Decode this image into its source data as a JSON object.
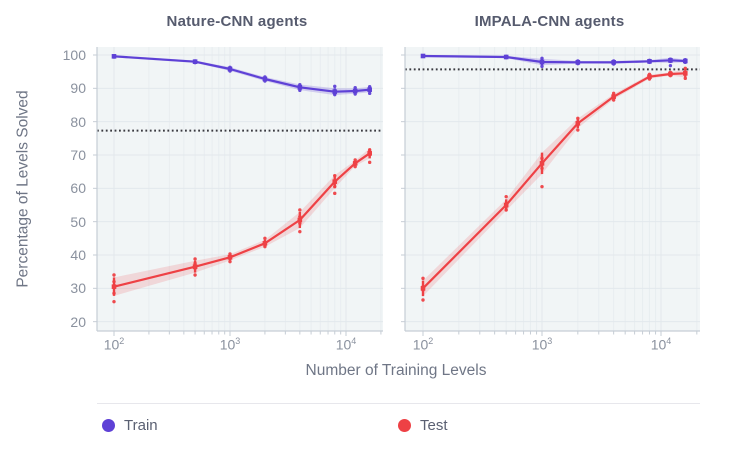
{
  "page": {
    "background": "#ffffff"
  },
  "legend": {
    "items": [
      {
        "label": "Train",
        "color": "#5E41D6"
      },
      {
        "label": "Test",
        "color": "#EE4145"
      }
    ]
  },
  "chart_data": {
    "type": "line",
    "xlabel": "Number of Training Levels",
    "ylabel": "Percentage of Levels Solved",
    "x_scale": "log",
    "grid": true,
    "legend_position": "bottom",
    "ylim": [
      20,
      100
    ],
    "y_ticks": [
      100,
      90,
      80,
      70,
      60,
      50,
      40,
      30,
      20
    ],
    "x_tick_exponents": [
      2,
      3,
      4
    ],
    "x": [
      100,
      500,
      1000,
      2000,
      4000,
      8000,
      12000,
      16000
    ],
    "style": {
      "plot_background": "#F1F5F6",
      "grid_color": "#E2E8EC",
      "minor_grid_color": "#E8EDF0",
      "spine_color": "#C6CDD5",
      "tick_label_color": "#8A919E",
      "baseline_color": "#3A3A40",
      "train_band_opacity": 0.22,
      "test_band_opacity": 0.16
    },
    "panels": [
      {
        "title": "Nature-CNN agents",
        "baseline": 77.3,
        "series": [
          {
            "name": "Train",
            "color": "#5E41D6",
            "mean": [
              99.6,
              98.0,
              95.8,
              92.8,
              90.3,
              89.0,
              89.2,
              89.6
            ],
            "seeds": [
              [
                99.4,
                99.7
              ],
              [
                97.7,
                98.2
              ],
              [
                95.2,
                96.3
              ],
              [
                92.2,
                93.4
              ],
              [
                89.4,
                91.1
              ],
              [
                88.1,
                89.2,
                90.6
              ],
              [
                88.3,
                89.3,
                90.2
              ],
              [
                88.5,
                89.7,
                90.5
              ]
            ]
          },
          {
            "name": "Test",
            "color": "#EE4145",
            "mean": [
              30.5,
              36.5,
              39.3,
              43.5,
              50.5,
              62.0,
              67.5,
              70.5
            ],
            "seeds": [
              [
                26.0,
                28.5,
                30.5,
                32.0,
                34.0
              ],
              [
                34.0,
                36.0,
                37.5,
                38.8
              ],
              [
                38.0,
                39.3,
                40.3
              ],
              [
                42.5,
                43.5,
                45.0
              ],
              [
                47.0,
                49.5,
                51.5,
                53.5
              ],
              [
                58.5,
                60.5,
                62.0,
                63.8
              ],
              [
                66.5,
                67.5,
                68.5
              ],
              [
                67.8,
                70.0,
                71.5
              ]
            ]
          }
        ]
      },
      {
        "title": "IMPALA-CNN agents",
        "baseline": 95.7,
        "series": [
          {
            "name": "Train",
            "color": "#5E41D6",
            "mean": [
              99.7,
              99.4,
              97.9,
              97.8,
              97.8,
              98.1,
              98.4,
              98.2
            ],
            "seeds": [
              [
                99.6,
                99.8
              ],
              [
                99.2,
                99.6
              ],
              [
                96.6,
                97.9,
                99.0
              ],
              [
                97.4,
                98.2
              ],
              [
                97.3,
                98.2
              ],
              [
                97.8,
                98.4
              ],
              [
                96.8,
                98.3,
                98.7
              ],
              [
                97.8,
                98.6
              ]
            ]
          },
          {
            "name": "Test",
            "color": "#EE4145",
            "mean": [
              30.0,
              55.0,
              67.5,
              79.5,
              87.5,
              93.5,
              94.3,
              94.5
            ],
            "seeds": [
              [
                26.5,
                29.5,
                30.5,
                33.0
              ],
              [
                53.5,
                54.5,
                57.5
              ],
              [
                60.5,
                66.0,
                67.5,
                69.0
              ],
              [
                77.5,
                79.5,
                81.0
              ],
              [
                86.5,
                87.5,
                88.5
              ],
              [
                92.8,
                93.5,
                94.2
              ],
              [
                93.8,
                94.8
              ],
              [
                93.0,
                94.5,
                96.0
              ]
            ]
          }
        ]
      }
    ]
  }
}
